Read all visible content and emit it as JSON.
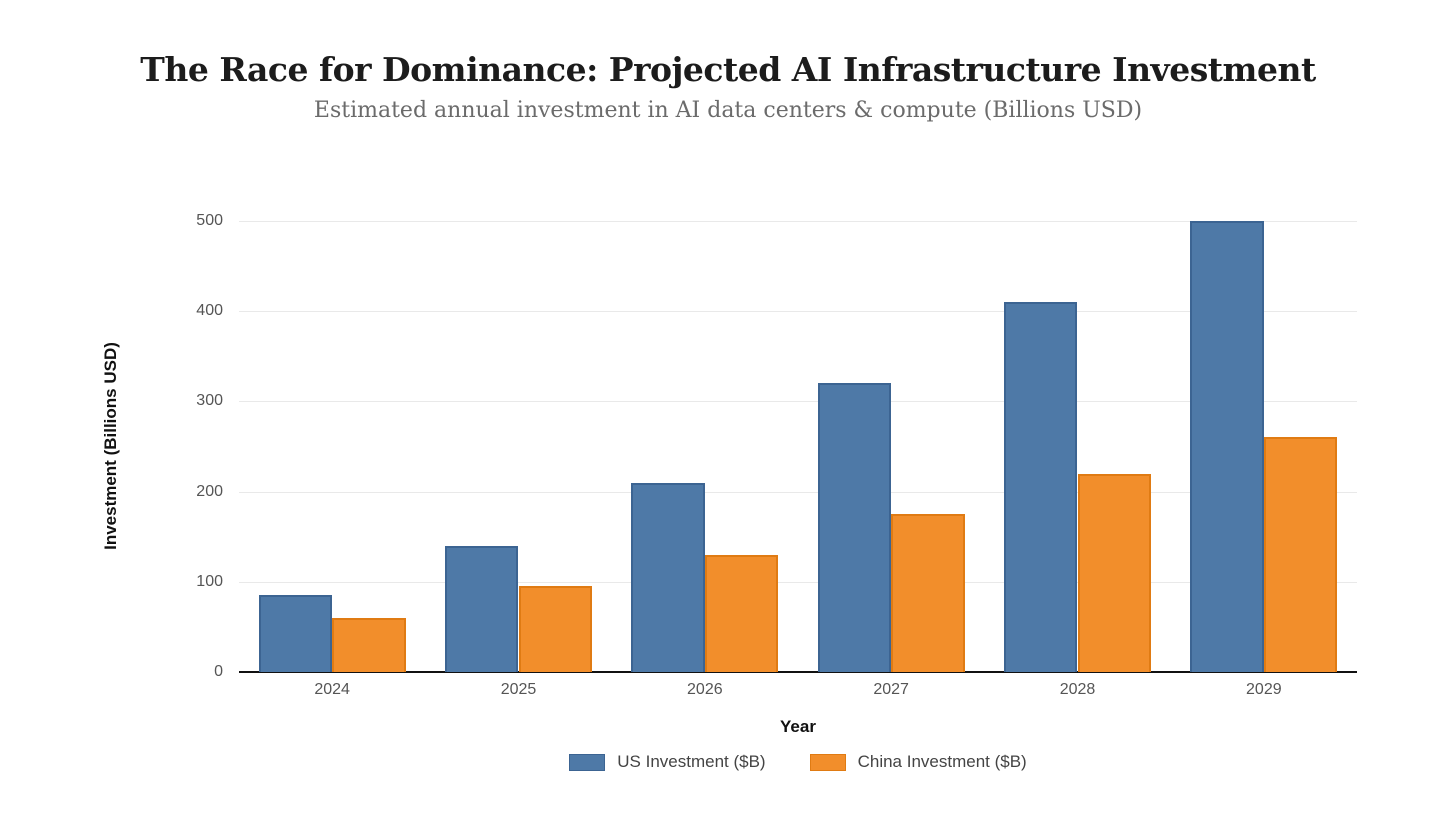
{
  "header": {
    "title": "The Race for Dominance: Projected AI Infrastructure Investment",
    "subtitle": "Estimated annual investment in AI data centers & compute (Billions USD)"
  },
  "chart_data": {
    "type": "bar",
    "title": "The Race for Dominance: Projected AI Infrastructure Investment",
    "subtitle": "Estimated annual investment in AI data centers & compute (Billions USD)",
    "categories": [
      "2024",
      "2025",
      "2026",
      "2027",
      "2028",
      "2029"
    ],
    "series": [
      {
        "name": "US Investment ($B)",
        "values": [
          85,
          140,
          210,
          320,
          410,
          500
        ],
        "color": "#4e79a7",
        "border_color": "#3c6492"
      },
      {
        "name": "China Investment ($B)",
        "values": [
          60,
          95,
          130,
          175,
          220,
          260
        ],
        "color": "#f28e2b",
        "border_color": "#e07b13"
      }
    ],
    "xlabel": "Year",
    "ylabel": "Investment (Billions USD)",
    "ylim": [
      0,
      500
    ],
    "yticks": [
      0,
      100,
      200,
      300,
      400,
      500
    ],
    "grid": true,
    "legend_position": "bottom",
    "axis_color": "#111111",
    "gridline_color": "#e9e9e9",
    "tick_label_color": "#555555"
  }
}
